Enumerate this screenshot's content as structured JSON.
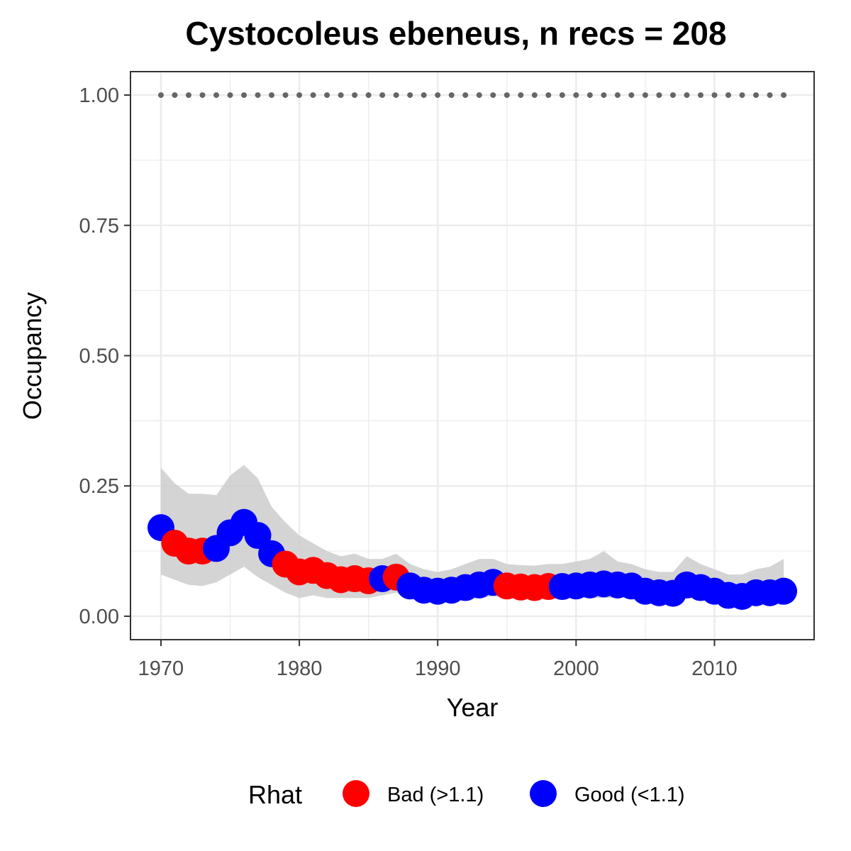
{
  "chart_data": {
    "type": "scatter",
    "title": "Cystocoleus ebeneus, n recs = 208",
    "xlabel": "Year",
    "ylabel": "Occupancy",
    "xlim": [
      1967.8,
      2017.2
    ],
    "ylim": [
      -0.045,
      1.045
    ],
    "x_ticks": [
      "1970",
      "1980",
      "1990",
      "2000",
      "2010"
    ],
    "y_ticks": [
      "0.00",
      "0.25",
      "0.50",
      "0.75",
      "1.00"
    ],
    "x_tick_values": [
      1970,
      1980,
      1990,
      2000,
      2010
    ],
    "y_tick_values": [
      0,
      0.25,
      0.5,
      0.75,
      1.0
    ],
    "grid": true,
    "legend": {
      "title": "Rhat",
      "position": "bottom",
      "entries": [
        {
          "label": "Bad (>1.1)",
          "color": "#ff0000"
        },
        {
          "label": "Good (<1.1)",
          "color": "#0000ff"
        }
      ]
    },
    "reference_line": {
      "y": 1.0,
      "style": "dotted",
      "color": "#666666"
    },
    "ribbon_color": "#cccccc",
    "years": [
      1970,
      1971,
      1972,
      1973,
      1974,
      1975,
      1976,
      1977,
      1978,
      1979,
      1980,
      1981,
      1982,
      1983,
      1984,
      1985,
      1986,
      1987,
      1988,
      1989,
      1990,
      1991,
      1992,
      1993,
      1994,
      1995,
      1996,
      1997,
      1998,
      1999,
      2000,
      2001,
      2002,
      2003,
      2004,
      2005,
      2006,
      2007,
      2008,
      2009,
      2010,
      2011,
      2012,
      2013,
      2014,
      2015
    ],
    "mean": [
      0.17,
      0.14,
      0.125,
      0.125,
      0.13,
      0.16,
      0.18,
      0.155,
      0.12,
      0.1,
      0.085,
      0.088,
      0.078,
      0.07,
      0.072,
      0.068,
      0.072,
      0.075,
      0.058,
      0.05,
      0.048,
      0.05,
      0.055,
      0.06,
      0.065,
      0.058,
      0.056,
      0.055,
      0.057,
      0.057,
      0.058,
      0.06,
      0.062,
      0.06,
      0.058,
      0.048,
      0.045,
      0.044,
      0.06,
      0.055,
      0.048,
      0.04,
      0.038,
      0.045,
      0.045,
      0.048
    ],
    "lower": [
      0.08,
      0.07,
      0.06,
      0.058,
      0.065,
      0.08,
      0.095,
      0.075,
      0.06,
      0.045,
      0.035,
      0.04,
      0.035,
      0.035,
      0.035,
      0.035,
      0.04,
      0.045,
      0.035,
      0.03,
      0.028,
      0.03,
      0.032,
      0.035,
      0.038,
      0.035,
      0.033,
      0.033,
      0.033,
      0.035,
      0.035,
      0.035,
      0.035,
      0.035,
      0.035,
      0.03,
      0.028,
      0.028,
      0.035,
      0.032,
      0.028,
      0.022,
      0.022,
      0.025,
      0.022,
      0.022
    ],
    "upper": [
      0.285,
      0.255,
      0.235,
      0.235,
      0.232,
      0.27,
      0.29,
      0.265,
      0.21,
      0.18,
      0.155,
      0.14,
      0.125,
      0.115,
      0.12,
      0.11,
      0.11,
      0.12,
      0.1,
      0.09,
      0.085,
      0.09,
      0.1,
      0.11,
      0.11,
      0.1,
      0.098,
      0.097,
      0.1,
      0.1,
      0.105,
      0.11,
      0.125,
      0.105,
      0.1,
      0.09,
      0.085,
      0.085,
      0.115,
      0.1,
      0.09,
      0.08,
      0.08,
      0.09,
      0.095,
      0.11
    ],
    "rhat": [
      "Good",
      "Bad",
      "Bad",
      "Bad",
      "Good",
      "Good",
      "Good",
      "Good",
      "Good",
      "Bad",
      "Bad",
      "Bad",
      "Bad",
      "Bad",
      "Bad",
      "Bad",
      "Good",
      "Bad",
      "Good",
      "Good",
      "Good",
      "Good",
      "Good",
      "Good",
      "Good",
      "Bad",
      "Bad",
      "Bad",
      "Bad",
      "Good",
      "Good",
      "Good",
      "Good",
      "Good",
      "Good",
      "Good",
      "Good",
      "Good",
      "Good",
      "Good",
      "Good",
      "Good",
      "Good",
      "Good",
      "Good",
      "Good"
    ]
  }
}
